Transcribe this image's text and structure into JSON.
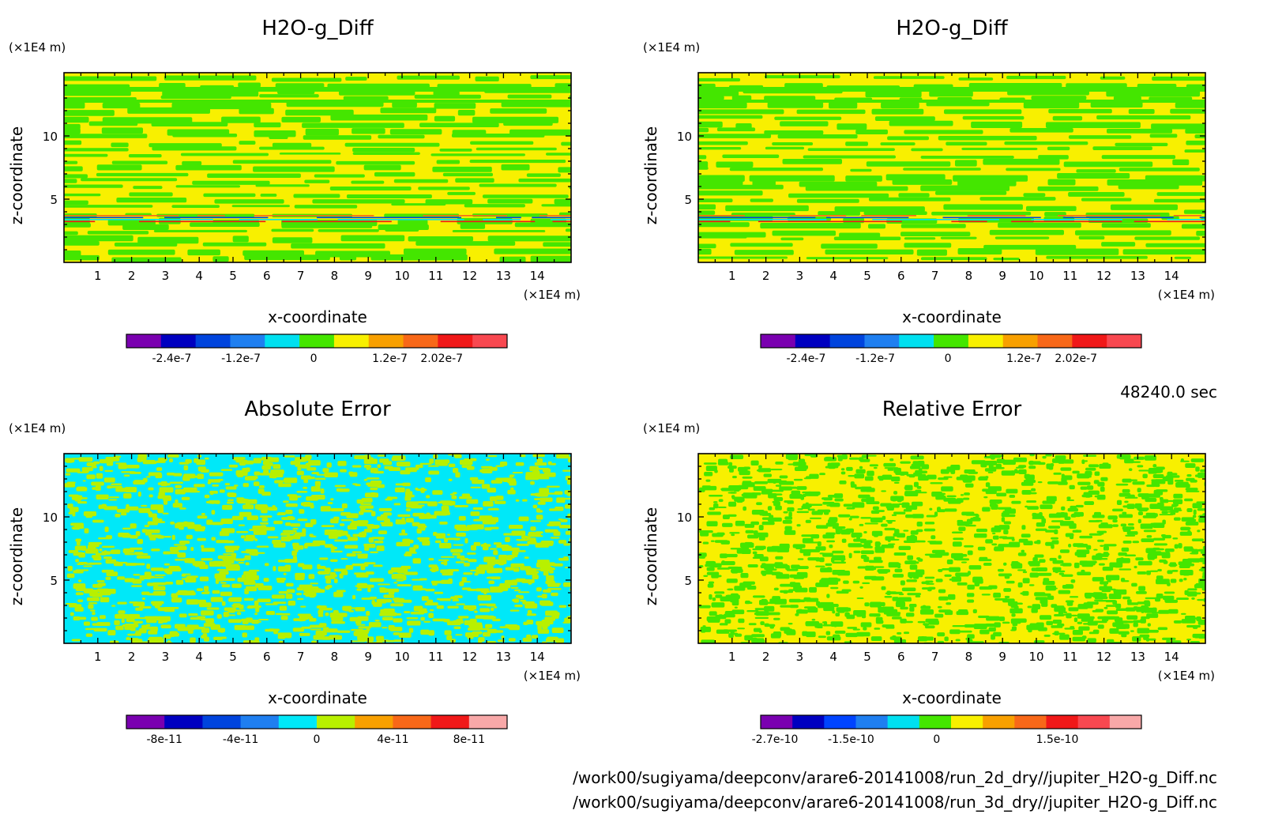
{
  "time_label": "48240.0 sec",
  "file_paths": [
    "/work00/sugiyama/deepconv/arare6-20141008/run_2d_dry//jupiter_H2O-g_Diff.nc",
    "/work00/sugiyama/deepconv/arare6-20141008/run_3d_dry//jupiter_H2O-g_Diff.nc"
  ],
  "chart_data": [
    {
      "type": "heatmap",
      "title": "H2O-g_Diff",
      "xlabel": "x-coordinate",
      "ylabel": "z-coordinate",
      "x_unit": "(×1E4 m)",
      "y_unit": "(×1E4 m)",
      "xlim": [
        0,
        15
      ],
      "ylim": [
        0,
        15
      ],
      "x_ticks": [
        "1",
        "2",
        "3",
        "4",
        "5",
        "6",
        "7",
        "8",
        "9",
        "10",
        "11",
        "12",
        "13",
        "14"
      ],
      "y_ticks": [
        "5",
        "10"
      ],
      "colorbar": {
        "colors": [
          "#7a00b0",
          "#0000c0",
          "#0044dd",
          "#1f7ff0",
          "#00e0f0",
          "#44e600",
          "#f8f000",
          "#f8a000",
          "#f86818",
          "#f01818",
          "#f84850"
        ],
        "tick_labels": [
          "-2.4e-7",
          "-1.2e-7",
          "0",
          "1.2e-7",
          "2.02e-7"
        ]
      },
      "pattern": "zonal-bands",
      "field_colors": [
        "#f8f000",
        "#44e600"
      ],
      "accent_colors": [
        "#f86818",
        "#0044dd",
        "#00e0f0",
        "#f01818"
      ]
    },
    {
      "type": "heatmap",
      "title": "H2O-g_Diff",
      "xlabel": "x-coordinate",
      "ylabel": "z-coordinate",
      "x_unit": "(×1E4 m)",
      "y_unit": "(×1E4 m)",
      "xlim": [
        0,
        15
      ],
      "ylim": [
        0,
        15
      ],
      "x_ticks": [
        "1",
        "2",
        "3",
        "4",
        "5",
        "6",
        "7",
        "8",
        "9",
        "10",
        "11",
        "12",
        "13",
        "14"
      ],
      "y_ticks": [
        "5",
        "10"
      ],
      "colorbar": {
        "colors": [
          "#7a00b0",
          "#0000c0",
          "#0044dd",
          "#1f7ff0",
          "#00e0f0",
          "#44e600",
          "#f8f000",
          "#f8a000",
          "#f86818",
          "#f01818",
          "#f84850"
        ],
        "tick_labels": [
          "-2.4e-7",
          "-1.2e-7",
          "0",
          "1.2e-7",
          "2.02e-7"
        ]
      },
      "pattern": "zonal-bands",
      "field_colors": [
        "#f8f000",
        "#44e600"
      ],
      "accent_colors": [
        "#f86818",
        "#0044dd",
        "#00e0f0",
        "#f01818"
      ]
    },
    {
      "type": "heatmap",
      "title": "Absolute Error",
      "xlabel": "x-coordinate",
      "ylabel": "z-coordinate",
      "x_unit": "(×1E4 m)",
      "y_unit": "(×1E4 m)",
      "xlim": [
        0,
        15
      ],
      "ylim": [
        0,
        15
      ],
      "x_ticks": [
        "1",
        "2",
        "3",
        "4",
        "5",
        "6",
        "7",
        "8",
        "9",
        "10",
        "11",
        "12",
        "13",
        "14"
      ],
      "y_ticks": [
        "5",
        "10"
      ],
      "colorbar": {
        "colors": [
          "#7a00b0",
          "#0000c0",
          "#0044dd",
          "#1f7ff0",
          "#00e8f8",
          "#b8f000",
          "#f8a000",
          "#f86818",
          "#f01818",
          "#f8a8a8"
        ],
        "tick_labels": [
          "-8e-11",
          "-4e-11",
          "0",
          "4e-11",
          "8e-11"
        ]
      },
      "pattern": "noise",
      "field_colors": [
        "#00e8f8",
        "#b8f000"
      ],
      "accent_colors": []
    },
    {
      "type": "heatmap",
      "title": "Relative Error",
      "xlabel": "x-coordinate",
      "ylabel": "z-coordinate",
      "x_unit": "(×1E4 m)",
      "y_unit": "(×1E4 m)",
      "xlim": [
        0,
        15
      ],
      "ylim": [
        0,
        15
      ],
      "x_ticks": [
        "1",
        "2",
        "3",
        "4",
        "5",
        "6",
        "7",
        "8",
        "9",
        "10",
        "11",
        "12",
        "13",
        "14"
      ],
      "y_ticks": [
        "5",
        "10"
      ],
      "colorbar": {
        "colors": [
          "#7a00b0",
          "#0000c0",
          "#0044ff",
          "#1f7ff0",
          "#00e0f0",
          "#44e600",
          "#f8f000",
          "#f8a000",
          "#f86818",
          "#f01818",
          "#f84850",
          "#f8a8a8"
        ],
        "tick_labels": [
          "-2.7e-10",
          "-1.5e-10",
          "0",
          "1.5e-10"
        ]
      },
      "pattern": "noise",
      "field_colors": [
        "#f8f000",
        "#44e600"
      ],
      "accent_colors": []
    }
  ]
}
